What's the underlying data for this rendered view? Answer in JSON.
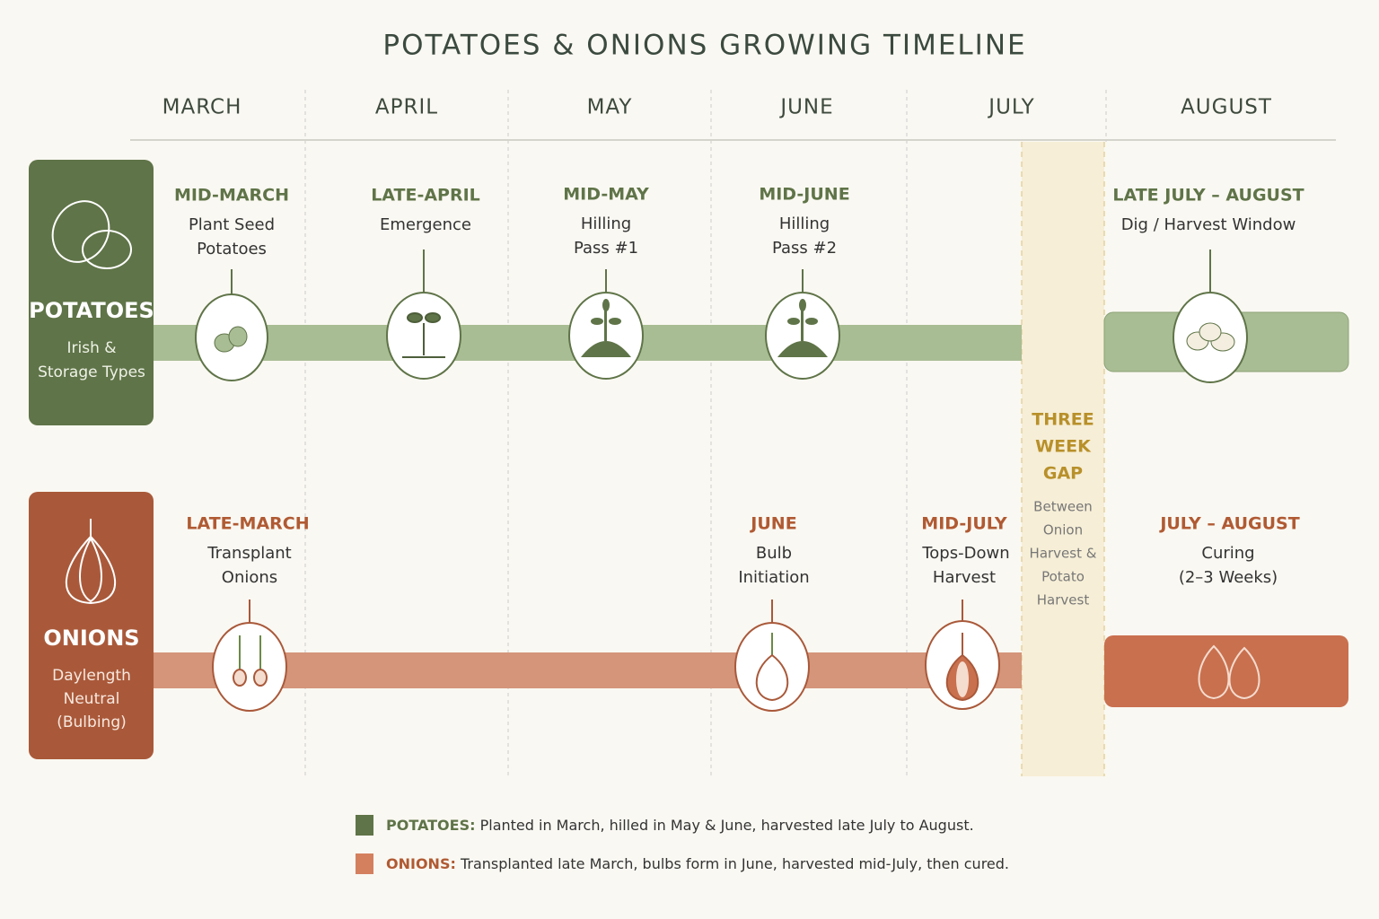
{
  "title": "POTATOES & ONIONS GROWING TIMELINE",
  "months": [
    "MARCH",
    "APRIL",
    "MAY",
    "JUNE",
    "JULY",
    "AUGUST"
  ],
  "rows": [
    {
      "name": "POTATOES",
      "subtitle": [
        "Irish &",
        "Storage Types"
      ],
      "events": [
        {
          "when": "MID-MARCH",
          "what": [
            "Plant Seed",
            "Potatoes"
          ]
        },
        {
          "when": "LATE-APRIL",
          "what": [
            "Emergence"
          ]
        },
        {
          "when": "MID-MAY",
          "what": [
            "Hilling",
            "Pass #1"
          ]
        },
        {
          "when": "MID-JUNE",
          "what": [
            "Hilling",
            "Pass #2"
          ]
        },
        {
          "when": "LATE JULY – AUGUST",
          "what": [
            "Dig / Harvest Window"
          ]
        }
      ]
    },
    {
      "name": "ONIONS",
      "subtitle": [
        "Daylength",
        "Neutral",
        "(Bulbing)"
      ],
      "events": [
        {
          "when": "LATE-MARCH",
          "what": [
            "Transplant",
            "Onions"
          ]
        },
        {
          "when": "JUNE",
          "what": [
            "Bulb",
            "Initiation"
          ]
        },
        {
          "when": "MID-JULY",
          "what": [
            "Tops-Down",
            "Harvest"
          ]
        },
        {
          "when": "JULY – AUGUST",
          "what": [
            "Curing",
            "(2–3 Weeks)"
          ]
        }
      ]
    }
  ],
  "gap": {
    "title": [
      "THREE",
      "WEEK",
      "GAP"
    ],
    "text": [
      "Between",
      "Onion",
      "Harvest &",
      "Potato",
      "Harvest"
    ]
  },
  "legend": [
    {
      "label": "POTATOES:",
      "text": "Planted in March, hilled in May & June, harvested late July to August."
    },
    {
      "label": "ONIONS:",
      "text": "Transplanted late March, bulbs form in June, harvested mid-July, then cured."
    }
  ]
}
